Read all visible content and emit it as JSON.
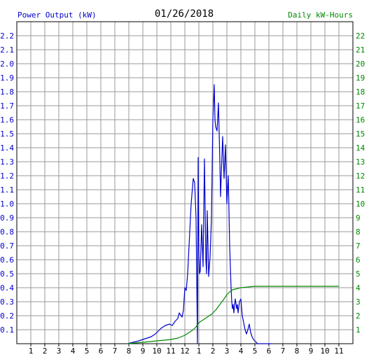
{
  "header": {
    "left_label": "Power Output (kW)",
    "date": "01/26/2018",
    "right_label": "Daily kW-Hours"
  },
  "colors": {
    "left_axis": "#0000cc",
    "right_axis": "#008800",
    "power_series": "#0000cc",
    "energy_series": "#008800",
    "grid": "#999999",
    "title": "#000000"
  },
  "chart_data": {
    "type": "line",
    "title": "01/26/2018",
    "xlabel": "",
    "ylabel": "Power Output (kW)",
    "y2label": "Daily kW-Hours",
    "grid": true,
    "xlim": [
      0,
      24
    ],
    "ylim": [
      0,
      2.3
    ],
    "y2lim": [
      0,
      23
    ],
    "x_tick_labels": [
      "1",
      "2",
      "3",
      "4",
      "5",
      "6",
      "7",
      "8",
      "9",
      "10",
      "11",
      "12",
      "1",
      "2",
      "3",
      "4",
      "5",
      "6",
      "7",
      "8",
      "9",
      "10",
      "11"
    ],
    "y_ticks": [
      0.1,
      0.2,
      0.3,
      0.4,
      0.5,
      0.6,
      0.7,
      0.8,
      0.9,
      1.0,
      1.1,
      1.2,
      1.3,
      1.4,
      1.5,
      1.6,
      1.7,
      1.8,
      1.9,
      2.0,
      2.1,
      2.2
    ],
    "y_tick_labels": [
      "0.1",
      "0.2",
      "0.3",
      "0.4",
      "0.5",
      "0.6",
      "0.7",
      "0.8",
      "0.9",
      "1.0",
      "1.1",
      "1.2",
      "1.3",
      "1.4",
      "1.5",
      "1.6",
      "1.7",
      "1.8",
      "1.9",
      "2.0",
      "2.1",
      "2.2"
    ],
    "y2_ticks": [
      1,
      2,
      3,
      4,
      5,
      6,
      7,
      8,
      9,
      10,
      11,
      12,
      13,
      14,
      15,
      16,
      17,
      18,
      19,
      20,
      21,
      22
    ],
    "y2_tick_labels": [
      "1",
      "2",
      "3",
      "4",
      "5",
      "6",
      "7",
      "8",
      "9",
      "10",
      "11",
      "12",
      "13",
      "14",
      "15",
      "16",
      "17",
      "18",
      "19",
      "20",
      "21",
      "22"
    ],
    "series": [
      {
        "name": "Power Output (kW)",
        "axis": "left",
        "x": [
          7.9,
          8.3,
          8.7,
          9.0,
          9.3,
          9.6,
          9.9,
          10.1,
          10.3,
          10.6,
          10.9,
          11.1,
          11.3,
          11.5,
          11.6,
          11.8,
          11.9,
          12.0,
          12.1,
          12.2,
          12.3,
          12.45,
          12.6,
          12.7,
          12.8,
          12.85,
          12.9,
          12.95,
          13.0,
          13.05,
          13.1,
          13.2,
          13.3,
          13.4,
          13.5,
          13.55,
          13.6,
          13.7,
          13.8,
          13.9,
          14.0,
          14.1,
          14.15,
          14.2,
          14.3,
          14.4,
          14.5,
          14.55,
          14.6,
          14.7,
          14.8,
          14.9,
          15.0,
          15.1,
          15.2,
          15.3,
          15.35,
          15.4,
          15.45,
          15.5,
          15.6,
          15.7,
          15.75,
          15.8,
          15.9,
          16.0,
          16.1,
          16.2,
          16.3,
          16.4,
          16.5,
          16.6,
          16.7,
          16.8,
          16.9,
          17.0,
          17.1,
          17.2,
          17.3,
          17.5,
          17.7,
          17.9,
          18.2
        ],
        "values": [
          0.0,
          0.01,
          0.02,
          0.03,
          0.04,
          0.05,
          0.07,
          0.09,
          0.11,
          0.13,
          0.14,
          0.13,
          0.16,
          0.18,
          0.22,
          0.19,
          0.24,
          0.4,
          0.38,
          0.5,
          0.7,
          1.0,
          1.18,
          1.15,
          0.9,
          0.45,
          0.0,
          1.33,
          0.65,
          0.5,
          0.52,
          0.85,
          0.55,
          1.32,
          0.6,
          0.5,
          0.95,
          0.48,
          0.62,
          0.9,
          1.6,
          1.85,
          1.6,
          1.55,
          1.52,
          1.72,
          1.3,
          1.05,
          1.2,
          1.48,
          1.18,
          1.42,
          1.0,
          1.2,
          0.7,
          0.4,
          0.3,
          0.25,
          0.28,
          0.22,
          0.32,
          0.25,
          0.28,
          0.22,
          0.3,
          0.32,
          0.2,
          0.15,
          0.1,
          0.07,
          0.1,
          0.14,
          0.08,
          0.05,
          0.03,
          0.02,
          0.01,
          0.0,
          0.0,
          0.0,
          0.0,
          0.0,
          0.0
        ]
      },
      {
        "name": "Daily kW-Hours",
        "axis": "right",
        "x": [
          7.9,
          9.0,
          10.0,
          11.0,
          11.5,
          12.0,
          12.3,
          12.6,
          12.8,
          13.0,
          13.3,
          13.6,
          13.9,
          14.2,
          14.5,
          14.8,
          15.0,
          15.2,
          15.4,
          15.6,
          15.8,
          16.0,
          16.5,
          17.0,
          18.0,
          20.0,
          22.0,
          23.0
        ],
        "values": [
          0.0,
          0.1,
          0.2,
          0.3,
          0.4,
          0.6,
          0.8,
          1.0,
          1.2,
          1.5,
          1.7,
          1.9,
          2.1,
          2.4,
          2.8,
          3.2,
          3.5,
          3.7,
          3.85,
          3.9,
          3.95,
          4.0,
          4.05,
          4.1,
          4.1,
          4.1,
          4.1,
          4.1
        ]
      }
    ]
  }
}
